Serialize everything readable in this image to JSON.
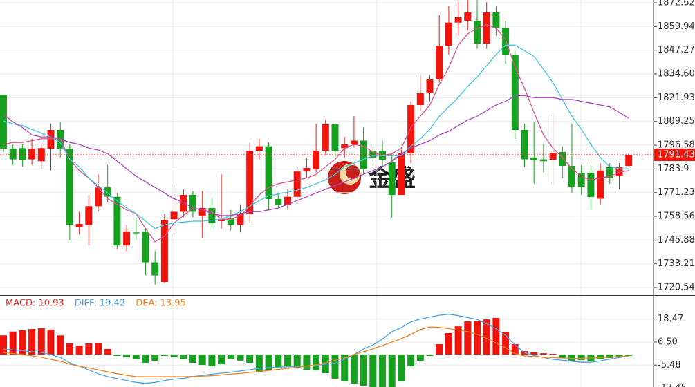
{
  "chart_data": [
    {
      "type": "candlestick",
      "open": [
        1823.5,
        1794.7,
        1795,
        1789,
        1788,
        1794.7,
        1804.7,
        1794.7,
        1753,
        1754,
        1764,
        1774,
        1769,
        1743,
        1750,
        1750.5,
        1734,
        1723.5,
        1757,
        1761,
        1770,
        1759,
        1763,
        1756,
        1757.5,
        1754,
        1760,
        1793.6,
        1796,
        1767.8,
        1764.8,
        1769,
        1782.5,
        1783.7,
        1793.6,
        1807.7,
        1795,
        1797,
        1799,
        1793.6,
        1793.6,
        1787.4,
        1770,
        1792.2,
        1818,
        1824.3,
        1831.7,
        1849.7,
        1862,
        1863,
        1863,
        1850.8,
        1867.5,
        1859.3,
        1844.6,
        1804.7,
        1790,
        1789,
        1788.8,
        1792.9,
        1785.5,
        1781.8,
        1781.8,
        1768,
        1784.8,
        1780,
        1785.5
      ],
      "high": [
        1823.5,
        1797,
        1797,
        1800,
        1798,
        1808,
        1809,
        1797,
        1761,
        1770,
        1781,
        1786,
        1771,
        1754,
        1758,
        1752,
        1740,
        1760,
        1775,
        1773,
        1772,
        1772,
        1768,
        1781,
        1762,
        1765,
        1798,
        1800,
        1798,
        1771,
        1773,
        1785,
        1790,
        1808,
        1810,
        1808.5,
        1801,
        1812,
        1806,
        1796,
        1799,
        1792,
        1794,
        1820,
        1834,
        1834,
        1866,
        1871,
        1873,
        1874,
        1874,
        1873,
        1871,
        1863,
        1847,
        1808,
        1809,
        1797,
        1814,
        1796,
        1808,
        1786,
        1786,
        1787,
        1787,
        1787,
        1792
      ],
      "low": [
        1792.9,
        1786,
        1785,
        1786,
        1784,
        1783,
        1790,
        1746,
        1749,
        1743,
        1761,
        1766,
        1741,
        1740,
        1746,
        1727,
        1722,
        1723,
        1749,
        1758,
        1758,
        1747,
        1752,
        1752,
        1751,
        1750,
        1755,
        1789,
        1762,
        1763,
        1762,
        1766,
        1779,
        1782,
        1791,
        1790,
        1790,
        1796,
        1781,
        1788,
        1785,
        1758,
        1770,
        1787,
        1815,
        1820,
        1830,
        1845,
        1855,
        1858,
        1848,
        1848,
        1855,
        1840,
        1800,
        1785,
        1776,
        1782,
        1775,
        1779,
        1771,
        1770,
        1762,
        1765,
        1776,
        1773,
        1785
      ],
      "close": [
        1794.7,
        1789,
        1788.5,
        1794.7,
        1795,
        1804.7,
        1794.7,
        1754,
        1754.5,
        1764,
        1774,
        1769,
        1743,
        1750.5,
        1749.5,
        1734,
        1727,
        1756.7,
        1761,
        1770,
        1761,
        1763,
        1755,
        1757,
        1754,
        1760,
        1793.6,
        1796,
        1767.8,
        1764.8,
        1769,
        1782.5,
        1784.4,
        1793.6,
        1807.7,
        1793.6,
        1797,
        1799,
        1783.7,
        1790,
        1788.5,
        1770,
        1792.2,
        1818,
        1824.3,
        1831.7,
        1849.7,
        1862,
        1864.9,
        1867.5,
        1850.8,
        1867.5,
        1859.3,
        1844.6,
        1804.7,
        1789,
        1788.5,
        1788,
        1792.5,
        1785.5,
        1774.4,
        1774.4,
        1768.9,
        1783,
        1778.9,
        1784.8,
        1791.43
      ],
      "up_color": "#f0160e",
      "down_color": "#18a020",
      "series": [
        {
          "color": "#e0508a",
          "values": [
            1797,
            1798,
            1798,
            1799,
            1800,
            1800,
            1800,
            1789,
            1783,
            1779,
            1774,
            1768,
            1765,
            1762,
            1760,
            1752,
            1745,
            1748,
            1755,
            1759,
            1763,
            1762,
            1761,
            1757,
            1757,
            1759,
            1764,
            1770,
            1774,
            1776,
            1777,
            1778,
            1779,
            1781,
            1785,
            1789,
            1795,
            1797,
            1796,
            1793,
            1791,
            1792,
            1795,
            1806,
            1812,
            1818,
            1829,
            1838,
            1850,
            1856,
            1859,
            1861,
            1859,
            1853,
            1838,
            1827,
            1814,
            1802,
            1795,
            1790,
            1784,
            1780,
            1778,
            1779,
            1780,
            1782,
            1783
          ]
        },
        {
          "color": "#40c4e0",
          "values": [
            1809.5,
            1808,
            1807,
            1805,
            1803,
            1801,
            1798,
            1789,
            1785,
            1779,
            1775,
            1771,
            1767,
            1763,
            1760,
            1756,
            1752,
            1754,
            1755,
            1755.5,
            1756,
            1756,
            1756.5,
            1757,
            1759,
            1761,
            1764,
            1767,
            1769.5,
            1770.5,
            1771.5,
            1772.5,
            1774,
            1776,
            1778,
            1781,
            1785,
            1787,
            1789,
            1791,
            1791,
            1791,
            1791,
            1796,
            1800,
            1805,
            1812,
            1817,
            1822,
            1828,
            1833,
            1839,
            1845,
            1850,
            1850,
            1847,
            1844,
            1837,
            1830,
            1821,
            1812,
            1805,
            1797,
            1790,
            1785,
            1784,
            1784
          ]
        },
        {
          "color": "#b040c0",
          "values": [
            1813,
            1809,
            1806,
            1802,
            1801,
            1801,
            1800,
            1798,
            1797,
            1795,
            1794,
            1792,
            1788,
            1784,
            1780,
            1777,
            1774,
            1771,
            1768,
            1766,
            1763,
            1762,
            1760,
            1759,
            1759,
            1760,
            1761,
            1761,
            1762,
            1763,
            1765,
            1767,
            1769,
            1771,
            1773,
            1775,
            1777,
            1779,
            1781,
            1783,
            1785,
            1788,
            1792,
            1795,
            1797,
            1799,
            1802,
            1804,
            1807,
            1810,
            1812,
            1815,
            1818,
            1820,
            1823,
            1823,
            1822,
            1822,
            1822,
            1821,
            1821,
            1820,
            1819,
            1818,
            1817,
            1814,
            1811
          ]
        }
      ],
      "current_price": {
        "value": 1791.43,
        "label": "1791.43",
        "color": "#f0160e"
      },
      "ylim": [
        1716.5,
        1874.1
      ],
      "yticks": [
        1872.62,
        1859.94,
        1847.27,
        {
          "value": 1834.6,
          "label": "1834.60"
        },
        1821.93,
        1809.25,
        1796.58,
        1783.9,
        1771.23,
        1758.56,
        1745.88,
        1733.21,
        1720.54
      ],
      "grid": true,
      "watermark": "金盛"
    },
    {
      "type": "macd",
      "values": [
        10,
        12,
        12.6,
        13.3,
        13.7,
        13,
        10,
        5.8,
        4.7,
        5.8,
        6.1,
        2.9,
        -0.7,
        -1.4,
        -2.5,
        -4.3,
        -3.2,
        -0.7,
        -1.4,
        -2.5,
        -4.3,
        -5.4,
        -6.1,
        -5,
        -2.5,
        -3.2,
        -4.3,
        -9,
        -7.9,
        -7.2,
        -6.1,
        -6.8,
        -7.9,
        -8.3,
        -9.7,
        -12.6,
        -14,
        -15.1,
        -16.2,
        -16.9,
        -16.9,
        -16.9,
        -14,
        -6.1,
        -3.2,
        -0.7,
        5.4,
        11.2,
        14.7,
        17.3,
        17.6,
        18.3,
        19.1,
        11.9,
        5.4,
        1.8,
        1.1,
        0.7,
        0.4,
        -1.8,
        -3.2,
        -2.9,
        -3.6,
        -2.5,
        -1.8,
        -1.4,
        -0.7
      ],
      "up_color": "#f0160e",
      "down_color": "#18a020",
      "series": [
        {
          "color": "#4aa3e6",
          "values": [
            2.9,
            2.5,
            2,
            1.5,
            1.1,
            0,
            -1.5,
            -4.3,
            -6,
            -8,
            -10,
            -11.5,
            -12.5,
            -13.5,
            -14.5,
            -15,
            -14.5,
            -13.5,
            -12.8,
            -12.4,
            -11.5,
            -10.8,
            -10.2,
            -9.7,
            -9.2,
            -8.6,
            -7.9,
            -7.2,
            -6.8,
            -6.6,
            -6.4,
            -6.2,
            -6.1,
            -5.6,
            -5,
            -4.4,
            -2.5,
            0,
            2.9,
            5,
            8,
            11.9,
            14,
            17,
            18.5,
            19.5,
            20.5,
            21,
            20.3,
            19.3,
            18.3,
            16,
            13.5,
            10,
            5,
            1,
            -0.5,
            -1.5,
            -2.5,
            -3,
            -3.5,
            -4,
            -4,
            -3.3,
            -2.4,
            -1.5,
            -0.7
          ]
        },
        {
          "color": "#f08020",
          "values": [
            1.1,
            0.5,
            0,
            -0.7,
            -1.4,
            -2.5,
            -3.5,
            -5,
            -6,
            -7,
            -8,
            -9,
            -10,
            -10.8,
            -11.5,
            -11.5,
            -11.5,
            -11.5,
            -11.5,
            -11.5,
            -11.4,
            -11.2,
            -11,
            -10.6,
            -10.2,
            -9.8,
            -9.3,
            -8.8,
            -8.3,
            -7.8,
            -7.2,
            -6.6,
            -6,
            -5.3,
            -4.3,
            -3,
            -1.8,
            0,
            1.5,
            3,
            4.7,
            6.5,
            8.3,
            10.5,
            13,
            14.4,
            14.2,
            13.5,
            12.8,
            12,
            10.5,
            8.5,
            6,
            3.5,
            0.5,
            -0.7,
            -1,
            -1.3,
            -1.6,
            -1.8,
            -2,
            -1.9,
            -1.8,
            -1.6,
            -1.3,
            -1,
            -0.7
          ]
        }
      ],
      "legend": [
        {
          "label": "MACD: 10.93",
          "color": "#e02020"
        },
        {
          "label": "DIFF: 19.42",
          "color": "#4aa3e6"
        },
        {
          "label": "DEA: 13.95",
          "color": "#f08020"
        }
      ],
      "ylim": [
        -16.9,
        30.6
      ],
      "yticks": [
        18.47,
        {
          "value": 6.5,
          "label": "6.50"
        },
        -5.48,
        -17.45
      ],
      "grid": true
    }
  ]
}
